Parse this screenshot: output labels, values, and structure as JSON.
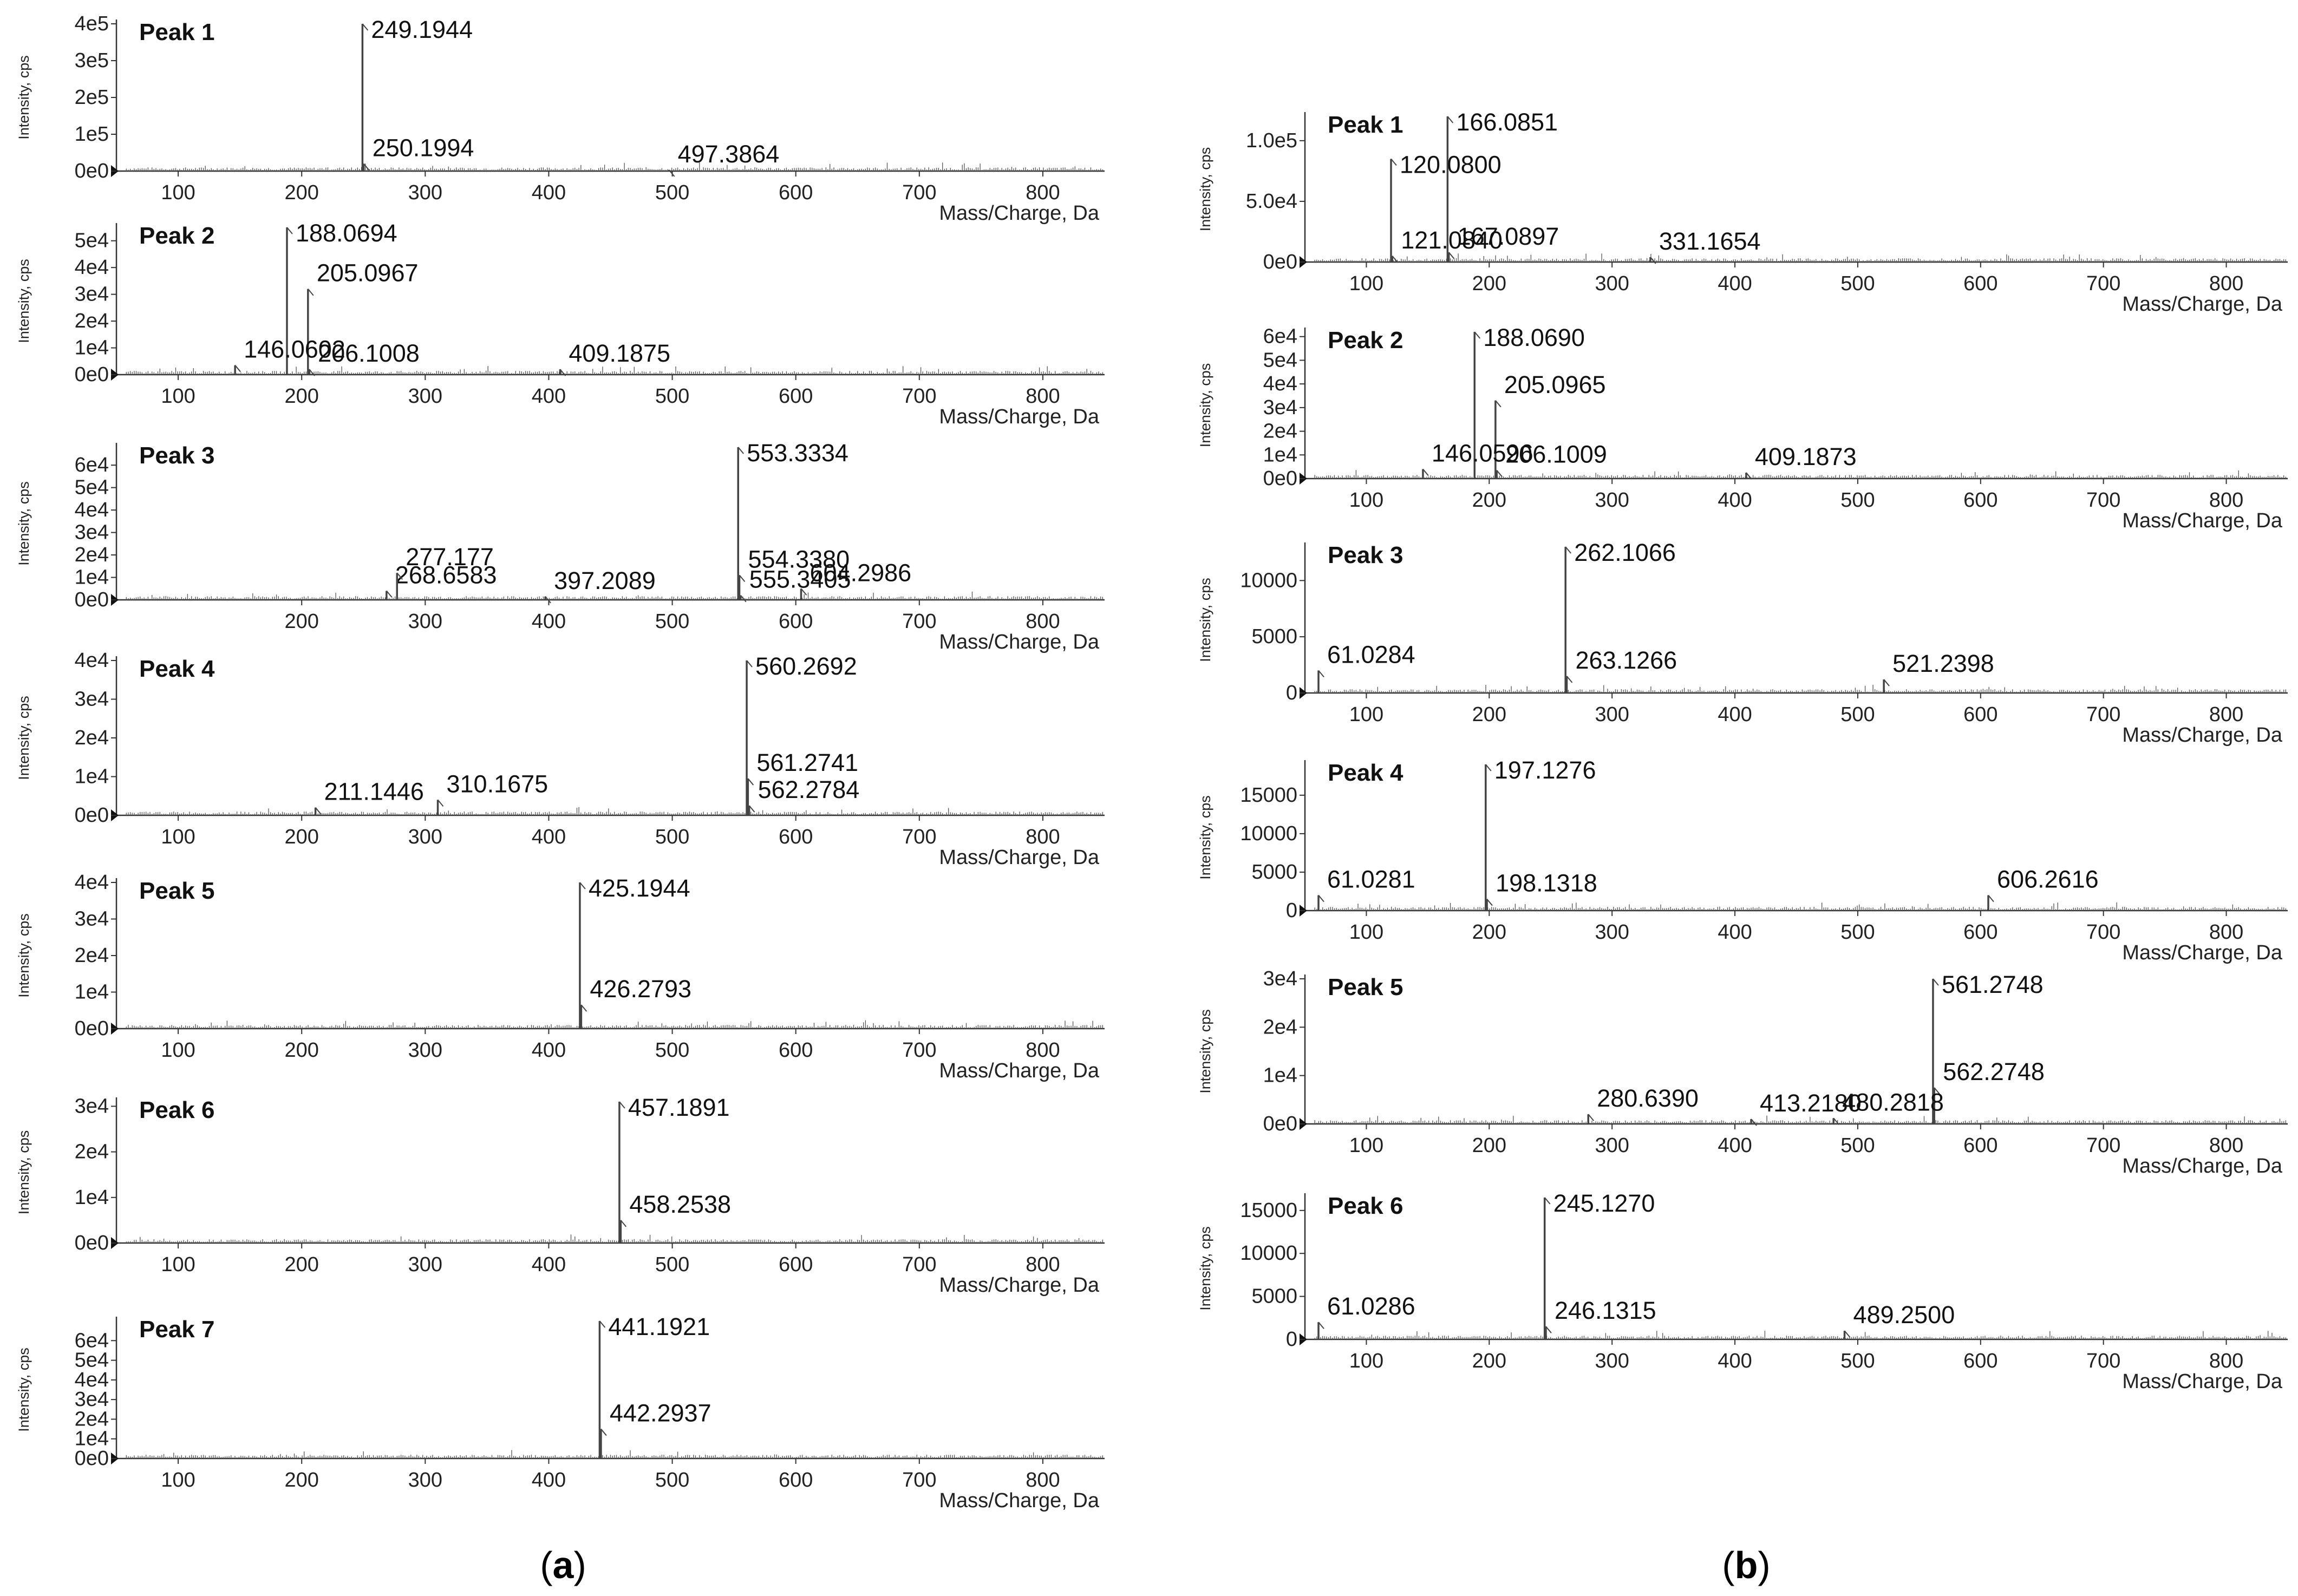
{
  "figure": {
    "caption_a": {
      "open": "(",
      "letter": "a",
      "close": ")"
    },
    "caption_b": {
      "open": "(",
      "letter": "b",
      "close": ")"
    }
  },
  "chart_data": [
    {
      "type": "line",
      "column": "a",
      "title": "Peak 1",
      "xlabel": "Mass/Charge, Da",
      "ylabel": "Intensity, cps",
      "xlim": [
        50,
        850
      ],
      "ylim": [
        0,
        400000
      ],
      "yticks": [
        {
          "v": 0,
          "label": "0e0"
        },
        {
          "v": 100000,
          "label": "1e5"
        },
        {
          "v": 200000,
          "label": "2e5"
        },
        {
          "v": 300000,
          "label": "3e5"
        },
        {
          "v": 400000,
          "label": "4e5"
        }
      ],
      "xticks": [
        100,
        200,
        300,
        400,
        500,
        600,
        700,
        800
      ],
      "peaks": [
        {
          "mz": 249.1944,
          "intensity": 400000,
          "label": "249.1944"
        },
        {
          "mz": 250.1994,
          "intensity": 20000,
          "label": "250.1994"
        },
        {
          "mz": 497.3864,
          "intensity": 3000,
          "label": "497.3864"
        }
      ]
    },
    {
      "type": "line",
      "column": "a",
      "title": "Peak 2",
      "xlabel": "Mass/Charge, Da",
      "ylabel": "Intensity, cps",
      "xlim": [
        50,
        850
      ],
      "ylim": [
        0,
        55000
      ],
      "yticks": [
        {
          "v": 0,
          "label": "0e0"
        },
        {
          "v": 10000,
          "label": "1e4"
        },
        {
          "v": 20000,
          "label": "2e4"
        },
        {
          "v": 30000,
          "label": "3e4"
        },
        {
          "v": 40000,
          "label": "4e4"
        },
        {
          "v": 50000,
          "label": "5e4"
        }
      ],
      "xticks": [
        100,
        200,
        300,
        400,
        500,
        600,
        700,
        800
      ],
      "peaks": [
        {
          "mz": 188.0694,
          "intensity": 55000,
          "label": "188.0694"
        },
        {
          "mz": 205.0967,
          "intensity": 32000,
          "label": "205.0967"
        },
        {
          "mz": 146.0602,
          "intensity": 3500,
          "label": "146.0602"
        },
        {
          "mz": 206.1008,
          "intensity": 2000,
          "label": "206.1008"
        },
        {
          "mz": 409.1875,
          "intensity": 2000,
          "label": "409.1875"
        }
      ]
    },
    {
      "type": "line",
      "column": "a",
      "title": "Peak 3",
      "xlabel": "Mass/Charge, Da",
      "ylabel": "Intensity, cps",
      "xlim": [
        50,
        850
      ],
      "ylim": [
        0,
        68000
      ],
      "yticks": [
        {
          "v": 0,
          "label": "0e0"
        },
        {
          "v": 10000,
          "label": "1e4"
        },
        {
          "v": 20000,
          "label": "2e4"
        },
        {
          "v": 30000,
          "label": "3e4"
        },
        {
          "v": 40000,
          "label": "4e4"
        },
        {
          "v": 50000,
          "label": "5e4"
        },
        {
          "v": 60000,
          "label": "6e4"
        }
      ],
      "xticks": [
        200,
        300,
        400,
        500,
        600,
        700,
        800
      ],
      "peaks": [
        {
          "mz": 553.3334,
          "intensity": 68000,
          "label": "553.3334"
        },
        {
          "mz": 554.338,
          "intensity": 11000,
          "label": "554.3380"
        },
        {
          "mz": 268.6583,
          "intensity": 4000,
          "label": "268.6583"
        },
        {
          "mz": 277.177,
          "intensity": 12000,
          "label": "277.177"
        },
        {
          "mz": 397.2089,
          "intensity": 1500,
          "label": "397.2089"
        },
        {
          "mz": 555.3405,
          "intensity": 2000,
          "label": "555.3405"
        },
        {
          "mz": 604.2986,
          "intensity": 5000,
          "label": "604.2986"
        }
      ]
    },
    {
      "type": "line",
      "column": "a",
      "title": "Peak 4",
      "xlabel": "Mass/Charge, Da",
      "ylabel": "Intensity, cps",
      "xlim": [
        50,
        850
      ],
      "ylim": [
        0,
        40000
      ],
      "yticks": [
        {
          "v": 0,
          "label": "0e0"
        },
        {
          "v": 10000,
          "label": "1e4"
        },
        {
          "v": 20000,
          "label": "2e4"
        },
        {
          "v": 30000,
          "label": "3e4"
        },
        {
          "v": 40000,
          "label": "4e4"
        }
      ],
      "xticks": [
        100,
        200,
        300,
        400,
        500,
        600,
        700,
        800
      ],
      "peaks": [
        {
          "mz": 560.2692,
          "intensity": 40000,
          "label": "560.2692"
        },
        {
          "mz": 561.2741,
          "intensity": 9500,
          "label": "561.2741"
        },
        {
          "mz": 562.2784,
          "intensity": 2500,
          "label": "562.2784"
        },
        {
          "mz": 211.1446,
          "intensity": 2000,
          "label": "211.1446"
        },
        {
          "mz": 310.1675,
          "intensity": 4000,
          "label": "310.1675"
        }
      ]
    },
    {
      "type": "line",
      "column": "a",
      "title": "Peak 5",
      "xlabel": "Mass/Charge, Da",
      "ylabel": "Intensity, cps",
      "xlim": [
        50,
        850
      ],
      "ylim": [
        0,
        40000
      ],
      "yticks": [
        {
          "v": 0,
          "label": "0e0"
        },
        {
          "v": 10000,
          "label": "1e4"
        },
        {
          "v": 20000,
          "label": "2e4"
        },
        {
          "v": 30000,
          "label": "3e4"
        },
        {
          "v": 40000,
          "label": "4e4"
        }
      ],
      "xticks": [
        100,
        200,
        300,
        400,
        500,
        600,
        700,
        800
      ],
      "peaks": [
        {
          "mz": 425.1944,
          "intensity": 40000,
          "label": "425.1944"
        },
        {
          "mz": 426.2793,
          "intensity": 6500,
          "label": "426.2793"
        }
      ]
    },
    {
      "type": "line",
      "column": "a",
      "title": "Peak 6",
      "xlabel": "Mass/Charge, Da",
      "ylabel": "Intensity, cps",
      "xlim": [
        50,
        850
      ],
      "ylim": [
        0,
        31000
      ],
      "yticks": [
        {
          "v": 0,
          "label": "0e0"
        },
        {
          "v": 10000,
          "label": "1e4"
        },
        {
          "v": 20000,
          "label": "2e4"
        },
        {
          "v": 30000,
          "label": "3e4"
        }
      ],
      "xticks": [
        100,
        200,
        300,
        400,
        500,
        600,
        700,
        800
      ],
      "peaks": [
        {
          "mz": 457.1891,
          "intensity": 31000,
          "label": "457.1891"
        },
        {
          "mz": 458.2538,
          "intensity": 5000,
          "label": "458.2538"
        }
      ]
    },
    {
      "type": "line",
      "column": "a",
      "title": "Peak 7",
      "xlabel": "Mass/Charge, Da",
      "ylabel": "Intensity, cps",
      "xlim": [
        50,
        850
      ],
      "ylim": [
        0,
        70000
      ],
      "yticks": [
        {
          "v": 0,
          "label": "0e0"
        },
        {
          "v": 10000,
          "label": "1e4"
        },
        {
          "v": 20000,
          "label": "2e4"
        },
        {
          "v": 30000,
          "label": "3e4"
        },
        {
          "v": 40000,
          "label": "4e4"
        },
        {
          "v": 50000,
          "label": "5e4"
        },
        {
          "v": 60000,
          "label": "6e4"
        }
      ],
      "xticks": [
        100,
        200,
        300,
        400,
        500,
        600,
        700,
        800
      ],
      "peaks": [
        {
          "mz": 441.1921,
          "intensity": 70000,
          "label": "441.1921"
        },
        {
          "mz": 442.2937,
          "intensity": 15000,
          "label": "442.2937"
        }
      ]
    },
    {
      "type": "line",
      "column": "b",
      "title": "Peak 1",
      "xlabel": "Mass/Charge, Da",
      "ylabel": "Intensity, cps",
      "xlim": [
        50,
        850
      ],
      "ylim": [
        0,
        120000
      ],
      "yticks": [
        {
          "v": 0,
          "label": "0e0"
        },
        {
          "v": 50000,
          "label": "5.0e4"
        },
        {
          "v": 100000,
          "label": "1.0e5"
        }
      ],
      "xticks": [
        100,
        200,
        300,
        400,
        500,
        600,
        700,
        800
      ],
      "peaks": [
        {
          "mz": 166.0851,
          "intensity": 120000,
          "label": "166.0851"
        },
        {
          "mz": 120.08,
          "intensity": 85000,
          "label": "120.0800"
        },
        {
          "mz": 121.084,
          "intensity": 5000,
          "label": "121.0840"
        },
        {
          "mz": 167.0897,
          "intensity": 8000,
          "label": "167.0897"
        },
        {
          "mz": 331.1654,
          "intensity": 4000,
          "label": "331.1654"
        }
      ]
    },
    {
      "type": "line",
      "column": "b",
      "title": "Peak 2",
      "xlabel": "Mass/Charge, Da",
      "ylabel": "Intensity, cps",
      "xlim": [
        50,
        850
      ],
      "ylim": [
        0,
        62000
      ],
      "yticks": [
        {
          "v": 0,
          "label": "0e0"
        },
        {
          "v": 10000,
          "label": "1e4"
        },
        {
          "v": 20000,
          "label": "2e4"
        },
        {
          "v": 30000,
          "label": "3e4"
        },
        {
          "v": 40000,
          "label": "4e4"
        },
        {
          "v": 50000,
          "label": "5e4"
        },
        {
          "v": 60000,
          "label": "6e4"
        }
      ],
      "xticks": [
        100,
        200,
        300,
        400,
        500,
        600,
        700,
        800
      ],
      "peaks": [
        {
          "mz": 188.069,
          "intensity": 62000,
          "label": "188.0690"
        },
        {
          "mz": 205.0965,
          "intensity": 33000,
          "label": "205.0965"
        },
        {
          "mz": 146.0596,
          "intensity": 4000,
          "label": "146.0596"
        },
        {
          "mz": 206.1009,
          "intensity": 3500,
          "label": "206.1009"
        },
        {
          "mz": 409.1873,
          "intensity": 2500,
          "label": "409.1873"
        }
      ]
    },
    {
      "type": "line",
      "column": "b",
      "title": "Peak 3",
      "xlabel": "Mass/Charge, Da",
      "ylabel": "Intensity, cps",
      "xlim": [
        50,
        850
      ],
      "ylim": [
        0,
        13000
      ],
      "yticks": [
        {
          "v": 0,
          "label": "0"
        },
        {
          "v": 5000,
          "label": "5000"
        },
        {
          "v": 10000,
          "label": "10000"
        }
      ],
      "xticks": [
        100,
        200,
        300,
        400,
        500,
        600,
        700,
        800
      ],
      "peaks": [
        {
          "mz": 262.1066,
          "intensity": 13000,
          "label": "262.1066"
        },
        {
          "mz": 61.0284,
          "intensity": 2000,
          "label": "61.0284"
        },
        {
          "mz": 263.1266,
          "intensity": 1500,
          "label": "263.1266"
        },
        {
          "mz": 521.2398,
          "intensity": 1200,
          "label": "521.2398"
        }
      ]
    },
    {
      "type": "line",
      "column": "b",
      "title": "Peak 4",
      "xlabel": "Mass/Charge, Da",
      "ylabel": "Intensity, cps",
      "xlim": [
        50,
        850
      ],
      "ylim": [
        0,
        19000
      ],
      "yticks": [
        {
          "v": 0,
          "label": "0"
        },
        {
          "v": 5000,
          "label": "5000"
        },
        {
          "v": 10000,
          "label": "10000"
        },
        {
          "v": 15000,
          "label": "15000"
        }
      ],
      "xticks": [
        100,
        200,
        300,
        400,
        500,
        600,
        700,
        800
      ],
      "peaks": [
        {
          "mz": 197.1276,
          "intensity": 19000,
          "label": "197.1276"
        },
        {
          "mz": 61.0281,
          "intensity": 2000,
          "label": "61.0281"
        },
        {
          "mz": 198.1318,
          "intensity": 1500,
          "label": "198.1318"
        },
        {
          "mz": 606.2616,
          "intensity": 2000,
          "label": "606.2616"
        }
      ]
    },
    {
      "type": "line",
      "column": "b",
      "title": "Peak 5",
      "xlabel": "Mass/Charge, Da",
      "ylabel": "Intensity, cps",
      "xlim": [
        50,
        850
      ],
      "ylim": [
        0,
        30000
      ],
      "yticks": [
        {
          "v": 0,
          "label": "0e0"
        },
        {
          "v": 10000,
          "label": "1e4"
        },
        {
          "v": 20000,
          "label": "2e4"
        },
        {
          "v": 30000,
          "label": "3e4"
        }
      ],
      "xticks": [
        100,
        200,
        300,
        400,
        500,
        600,
        700,
        800
      ],
      "peaks": [
        {
          "mz": 561.2748,
          "intensity": 30000,
          "label": "561.2748"
        },
        {
          "mz": 562.2748,
          "intensity": 7500,
          "label": "562.2748"
        },
        {
          "mz": 280.639,
          "intensity": 2000,
          "label": "280.6390"
        },
        {
          "mz": 413.218,
          "intensity": 1000,
          "label": "413.2180"
        },
        {
          "mz": 480.2818,
          "intensity": 1200,
          "label": "480.2818"
        }
      ]
    },
    {
      "type": "line",
      "column": "b",
      "title": "Peak 6",
      "xlabel": "Mass/Charge, Da",
      "ylabel": "Intensity, cps",
      "xlim": [
        50,
        850
      ],
      "ylim": [
        0,
        16500
      ],
      "yticks": [
        {
          "v": 0,
          "label": "0"
        },
        {
          "v": 5000,
          "label": "5000"
        },
        {
          "v": 10000,
          "label": "10000"
        },
        {
          "v": 15000,
          "label": "15000"
        }
      ],
      "xticks": [
        100,
        200,
        300,
        400,
        500,
        600,
        700,
        800
      ],
      "peaks": [
        {
          "mz": 245.127,
          "intensity": 16500,
          "label": "245.1270"
        },
        {
          "mz": 61.0286,
          "intensity": 2000,
          "label": "61.0286"
        },
        {
          "mz": 246.1315,
          "intensity": 1500,
          "label": "246.1315"
        },
        {
          "mz": 489.25,
          "intensity": 1000,
          "label": "489.2500"
        }
      ]
    }
  ]
}
